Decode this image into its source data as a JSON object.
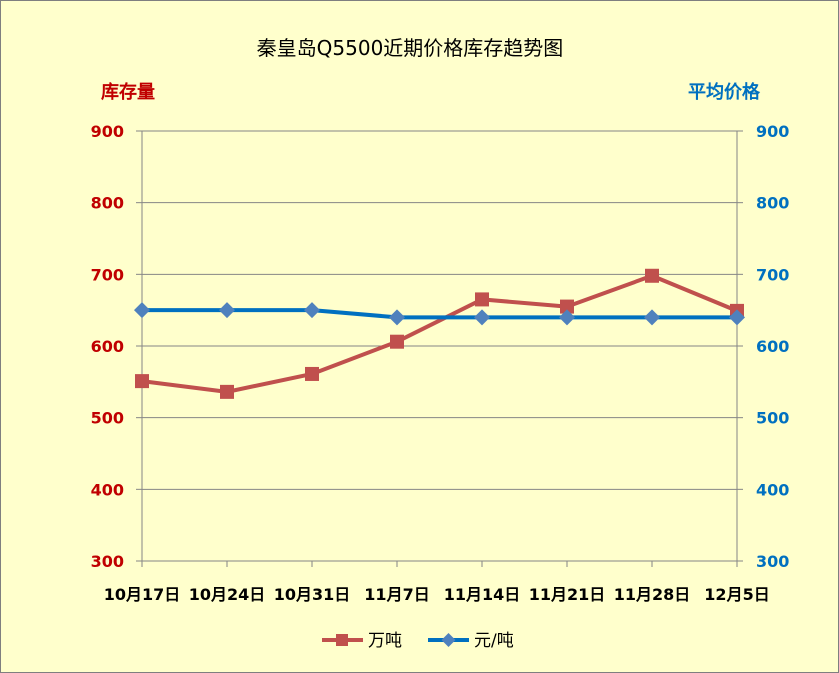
{
  "chart_data": {
    "type": "line",
    "title": "秦皇岛Q5500近期价格库存趋势图",
    "ylabel_left": "库存量",
    "ylabel_right": "平均价格",
    "ylim_left": [
      300,
      900
    ],
    "ylim_right": [
      300,
      900
    ],
    "yticks_left": [
      "900",
      "800",
      "700",
      "600",
      "500",
      "400",
      "300"
    ],
    "yticks_right": [
      "900",
      "800",
      "700",
      "600",
      "500",
      "400",
      "300"
    ],
    "categories": [
      "10月17日",
      "10月24日",
      "10月31日",
      "11月7日",
      "11月14日",
      "11月21日",
      "11月28日",
      "12月5日"
    ],
    "series": [
      {
        "name": "万吨",
        "axis": "left",
        "color": "#c0504d",
        "marker": "square",
        "values": [
          551,
          536,
          561,
          606,
          665,
          655,
          698,
          649
        ]
      },
      {
        "name": "元/吨",
        "axis": "right",
        "color": "#0070c0",
        "marker": "diamond",
        "values": [
          650,
          650,
          650,
          640,
          640,
          640,
          640,
          640
        ]
      }
    ],
    "grid": "horizontal",
    "legend_position": "bottom"
  },
  "colors": {
    "background": "#ffffcc",
    "left_axis": "#c00000",
    "right_axis": "#0070c0",
    "gridline": "#868686"
  }
}
